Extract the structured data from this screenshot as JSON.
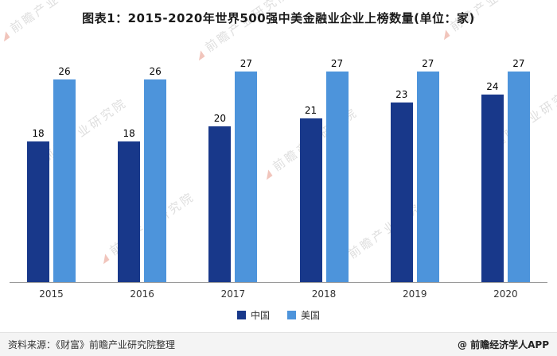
{
  "title": "图表1：2015-2020年世界500强中美金融业企业上榜数量(单位：家)",
  "chart_data": {
    "type": "bar",
    "categories": [
      "2015",
      "2016",
      "2017",
      "2018",
      "2019",
      "2020"
    ],
    "series": [
      {
        "name": "中国",
        "color": "#18388A",
        "values": [
          18,
          18,
          20,
          21,
          23,
          24
        ]
      },
      {
        "name": "美国",
        "color": "#4D94DB",
        "values": [
          26,
          26,
          27,
          27,
          27,
          27
        ]
      }
    ],
    "ylim": [
      0,
      27
    ],
    "grid": false,
    "legend_position": "bottom",
    "value_labels": true
  },
  "watermark": {
    "text": "前瞻产业研究院"
  },
  "footer": {
    "source": "资料来源：《财富》前瞻产业研究院整理",
    "brand": "@ 前瞻经济学人APP"
  }
}
